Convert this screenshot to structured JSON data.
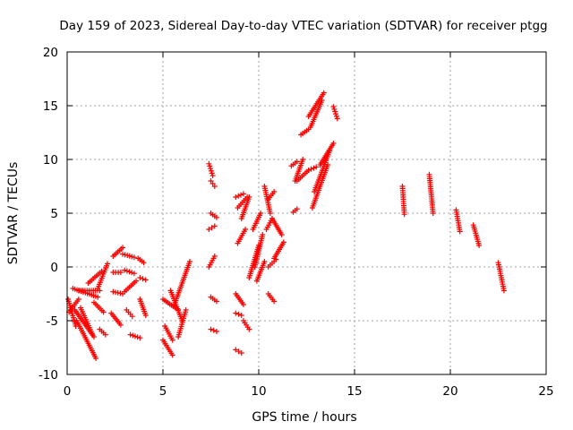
{
  "chart_data": {
    "type": "scatter",
    "title": "Day 159 of 2023, Sidereal Day-to-day VTEC variation (SDTVAR) for receiver ptgg",
    "xlabel": "GPS time / hours",
    "ylabel": "SDTVAR / TECUs",
    "xlim": [
      0,
      25
    ],
    "ylim": [
      -10,
      20
    ],
    "x_ticks": [
      "0",
      "5",
      "10",
      "15",
      "20",
      "25"
    ],
    "y_ticks": [
      "-10",
      "-5",
      "0",
      "5",
      "10",
      "15",
      "20"
    ],
    "grid": true,
    "marker": "plus",
    "color": "#ff0000",
    "segments": [
      {
        "x": [
          0.05,
          0.45
        ],
        "y": [
          -3.0,
          -5.5
        ]
      },
      {
        "x": [
          0.1,
          0.6
        ],
        "y": [
          -4.2,
          -3.0
        ]
      },
      {
        "x": [
          0.4,
          1.4
        ],
        "y": [
          -4.0,
          -6.5
        ]
      },
      {
        "x": [
          0.5,
          1.5
        ],
        "y": [
          -5.0,
          -8.5
        ]
      },
      {
        "x": [
          0.7,
          1.3
        ],
        "y": [
          -3.8,
          -6.2
        ]
      },
      {
        "x": [
          0.3,
          1.6
        ],
        "y": [
          -2.0,
          -2.8
        ]
      },
      {
        "x": [
          0.6,
          1.7
        ],
        "y": [
          -2.2,
          -2.2
        ]
      },
      {
        "x": [
          1.6,
          2.1
        ],
        "y": [
          -2.0,
          0.3
        ]
      },
      {
        "x": [
          1.1,
          1.8
        ],
        "y": [
          -1.5,
          -0.4
        ]
      },
      {
        "x": [
          1.4,
          1.9
        ],
        "y": [
          -3.3,
          -4.2
        ]
      },
      {
        "x": [
          1.7,
          2.0
        ],
        "y": [
          -5.8,
          -6.3
        ]
      },
      {
        "x": [
          2.4,
          2.9
        ],
        "y": [
          1.0,
          1.8
        ]
      },
      {
        "x": [
          2.4,
          2.8
        ],
        "y": [
          -0.5,
          -0.5
        ]
      },
      {
        "x": [
          2.4,
          2.9
        ],
        "y": [
          -2.3,
          -2.5
        ]
      },
      {
        "x": [
          2.3,
          2.8
        ],
        "y": [
          -4.3,
          -5.4
        ]
      },
      {
        "x": [
          2.9,
          3.5
        ],
        "y": [
          1.2,
          0.9
        ]
      },
      {
        "x": [
          3.0,
          3.5
        ],
        "y": [
          -0.3,
          -0.6
        ]
      },
      {
        "x": [
          3.0,
          3.6
        ],
        "y": [
          -2.3,
          -1.3
        ]
      },
      {
        "x": [
          3.1,
          3.4
        ],
        "y": [
          -4.0,
          -4.6
        ]
      },
      {
        "x": [
          3.7,
          4.0
        ],
        "y": [
          0.8,
          0.4
        ]
      },
      {
        "x": [
          3.8,
          4.1
        ],
        "y": [
          -1.0,
          -1.2
        ]
      },
      {
        "x": [
          3.8,
          4.1
        ],
        "y": [
          -3.0,
          -4.5
        ]
      },
      {
        "x": [
          3.3,
          3.8
        ],
        "y": [
          -6.3,
          -6.6
        ]
      },
      {
        "x": [
          5.0,
          5.8
        ],
        "y": [
          -3.0,
          -4.0
        ]
      },
      {
        "x": [
          5.1,
          5.5
        ],
        "y": [
          -5.5,
          -6.8
        ]
      },
      {
        "x": [
          5.0,
          5.5
        ],
        "y": [
          -6.8,
          -8.2
        ]
      },
      {
        "x": [
          5.4,
          6.0
        ],
        "y": [
          -2.2,
          -5.0
        ]
      },
      {
        "x": [
          5.6,
          6.4
        ],
        "y": [
          -3.5,
          0.5
        ]
      },
      {
        "x": [
          5.8,
          6.2
        ],
        "y": [
          -6.5,
          -4.0
        ]
      },
      {
        "x": [
          7.4,
          7.6
        ],
        "y": [
          9.6,
          8.5
        ]
      },
      {
        "x": [
          7.5,
          7.7
        ],
        "y": [
          8.0,
          7.5
        ]
      },
      {
        "x": [
          7.5,
          7.8
        ],
        "y": [
          5.0,
          4.6
        ]
      },
      {
        "x": [
          7.4,
          7.7
        ],
        "y": [
          3.5,
          3.8
        ]
      },
      {
        "x": [
          7.4,
          7.7
        ],
        "y": [
          0.0,
          1.0
        ]
      },
      {
        "x": [
          7.5,
          7.8
        ],
        "y": [
          -2.8,
          -3.2
        ]
      },
      {
        "x": [
          7.5,
          7.8
        ],
        "y": [
          -5.8,
          -6.0
        ]
      },
      {
        "x": [
          8.8,
          9.2
        ],
        "y": [
          6.5,
          6.8
        ]
      },
      {
        "x": [
          8.9,
          9.4
        ],
        "y": [
          5.5,
          6.5
        ]
      },
      {
        "x": [
          8.9,
          9.3
        ],
        "y": [
          2.2,
          3.5
        ]
      },
      {
        "x": [
          9.1,
          9.5
        ],
        "y": [
          4.5,
          6.5
        ]
      },
      {
        "x": [
          8.8,
          9.2
        ],
        "y": [
          -2.5,
          -3.5
        ]
      },
      {
        "x": [
          8.8,
          9.1
        ],
        "y": [
          -4.3,
          -4.5
        ]
      },
      {
        "x": [
          8.8,
          9.1
        ],
        "y": [
          -7.7,
          -8.0
        ]
      },
      {
        "x": [
          9.2,
          9.5
        ],
        "y": [
          -5.0,
          -5.8
        ]
      },
      {
        "x": [
          9.5,
          10.0
        ],
        "y": [
          -1.0,
          2.0
        ]
      },
      {
        "x": [
          9.7,
          10.1
        ],
        "y": [
          3.5,
          5.0
        ]
      },
      {
        "x": [
          9.8,
          10.2
        ],
        "y": [
          0.0,
          3.0
        ]
      },
      {
        "x": [
          9.9,
          10.3
        ],
        "y": [
          -1.3,
          0.5
        ]
      },
      {
        "x": [
          10.3,
          10.6
        ],
        "y": [
          7.5,
          5.0
        ]
      },
      {
        "x": [
          10.5,
          10.8
        ],
        "y": [
          6.3,
          7.0
        ]
      },
      {
        "x": [
          10.4,
          10.7
        ],
        "y": [
          3.5,
          4.5
        ]
      },
      {
        "x": [
          10.5,
          10.8
        ],
        "y": [
          -2.5,
          -3.2
        ]
      },
      {
        "x": [
          10.7,
          11.2
        ],
        "y": [
          4.5,
          3.0
        ]
      },
      {
        "x": [
          10.8,
          11.3
        ],
        "y": [
          0.8,
          2.3
        ]
      },
      {
        "x": [
          10.5,
          10.9
        ],
        "y": [
          0.0,
          0.7
        ]
      },
      {
        "x": [
          11.7,
          12.0
        ],
        "y": [
          9.4,
          9.8
        ]
      },
      {
        "x": [
          11.9,
          12.3
        ],
        "y": [
          8.0,
          10.0
        ]
      },
      {
        "x": [
          12.0,
          12.6
        ],
        "y": [
          8.0,
          9.0
        ]
      },
      {
        "x": [
          12.2,
          12.6
        ],
        "y": [
          12.3,
          12.8
        ]
      },
      {
        "x": [
          12.6,
          13.0
        ],
        "y": [
          9.0,
          9.3
        ]
      },
      {
        "x": [
          11.8,
          12.0
        ],
        "y": [
          5.1,
          5.4
        ]
      },
      {
        "x": [
          12.6,
          13.4
        ],
        "y": [
          14.0,
          16.2
        ]
      },
      {
        "x": [
          12.7,
          13.3
        ],
        "y": [
          13.0,
          15.5
        ]
      },
      {
        "x": [
          12.8,
          13.6
        ],
        "y": [
          5.5,
          9.5
        ]
      },
      {
        "x": [
          12.9,
          13.7
        ],
        "y": [
          7.0,
          10.8
        ]
      },
      {
        "x": [
          13.2,
          13.9
        ],
        "y": [
          9.5,
          11.5
        ]
      },
      {
        "x": [
          13.9,
          14.1
        ],
        "y": [
          14.9,
          13.8
        ]
      },
      {
        "x": [
          17.5,
          17.6
        ],
        "y": [
          7.5,
          4.9
        ]
      },
      {
        "x": [
          18.9,
          19.1
        ],
        "y": [
          8.6,
          5.0
        ]
      },
      {
        "x": [
          20.3,
          20.5
        ],
        "y": [
          5.3,
          3.3
        ]
      },
      {
        "x": [
          21.2,
          21.5
        ],
        "y": [
          3.9,
          2.0
        ]
      },
      {
        "x": [
          22.5,
          22.8
        ],
        "y": [
          0.4,
          -2.2
        ]
      }
    ]
  }
}
